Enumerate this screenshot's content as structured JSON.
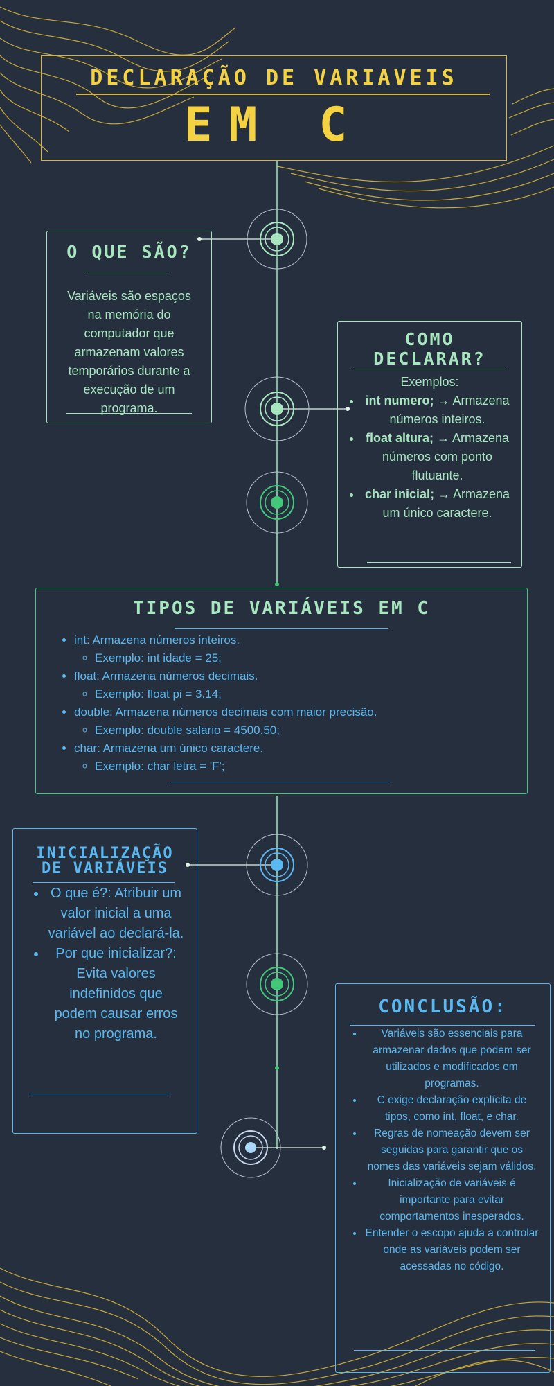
{
  "header": {
    "title_line1": "DECLARAÇÃO DE VARIAVEIS",
    "title_line2": "EM C"
  },
  "what_is": {
    "heading": "O QUE SÃO?",
    "body": "Variáveis são espaços na memória do computador que armazenam valores temporários durante a execução de um programa."
  },
  "how_to_declare": {
    "heading_line1": "COMO",
    "heading_line2": "DECLARAR?",
    "intro": "Exemplos:",
    "items": [
      {
        "code": "int numero;",
        "arrow": "→",
        "desc": "Armazena números inteiros."
      },
      {
        "code": "float altura;",
        "arrow": "→",
        "desc": "Armazena números com ponto flutuante."
      },
      {
        "code": "char inicial;",
        "arrow": "→",
        "desc": "Armazena um único caractere."
      }
    ]
  },
  "types": {
    "heading": "TIPOS DE VARIÁVEIS EM C",
    "items": [
      {
        "text": "int: Armazena números inteiros.",
        "example": "Exemplo: int idade = 25;"
      },
      {
        "text": "float: Armazena números decimais.",
        "example": "Exemplo: float pi = 3.14;"
      },
      {
        "text": "double: Armazena números decimais com maior precisão.",
        "example": "Exemplo: double salario = 4500.50;"
      },
      {
        "text": "char: Armazena um único caractere.",
        "example": "Exemplo: char letra = 'F';"
      }
    ]
  },
  "init": {
    "heading_line1": "INICIALIZAÇÃO",
    "heading_line2": "DE VARIÁVEIS",
    "items": [
      "O que é?: Atribuir um valor inicial a uma variável ao declará-la.",
      "Por que inicializar?: Evita valores indefinidos que podem causar erros no programa."
    ]
  },
  "conclusion": {
    "heading": "CONCLUSÃO:",
    "items": [
      "Variáveis são essenciais para armazenar dados que podem ser utilizados e modificados em programas.",
      "C exige declaração explícita de tipos, como int, float, e char.",
      "Regras de nomeação devem ser seguidas para garantir que os nomes das variáveis sejam válidos.",
      "Inicialização de variáveis é importante para evitar comportamentos inesperados.",
      "Entender o escopo ajuda a controlar onde as variáveis podem ser acessadas no código."
    ]
  },
  "colors": {
    "background": "#262f3e",
    "gold": "#f5d241",
    "mint": "#a8e6c0",
    "green": "#43c87a",
    "blue": "#5ab8f0"
  }
}
